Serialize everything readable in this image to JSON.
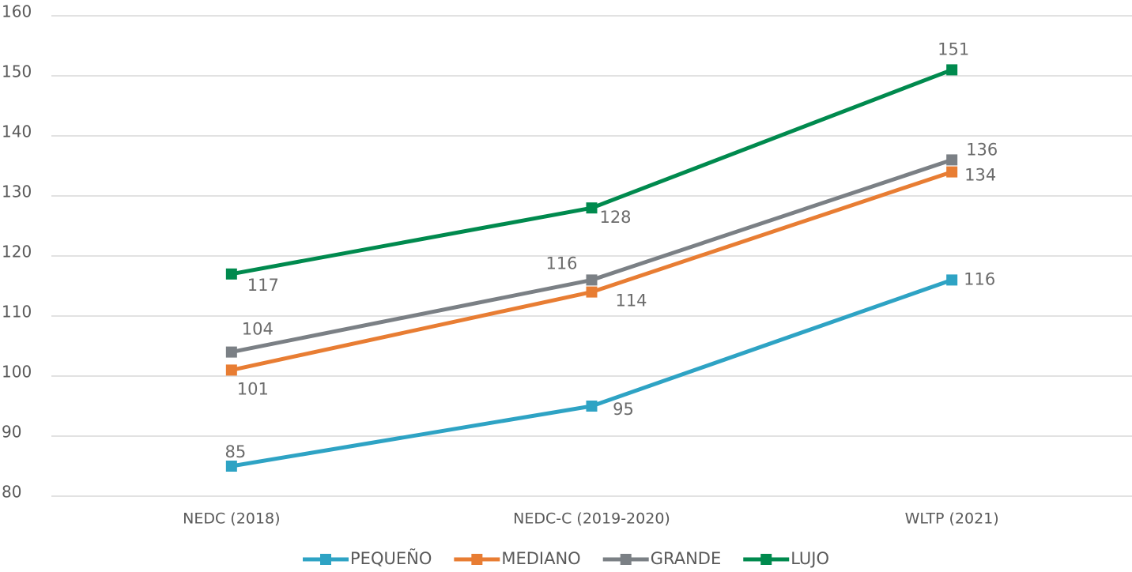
{
  "chart_data": {
    "type": "line",
    "categories": [
      "NEDC (2018)",
      "NEDC-C (2019-2020)",
      "WLTP (2021)"
    ],
    "series": [
      {
        "name": "PEQUEÑO",
        "color": "#2ea3c4",
        "values": [
          85,
          95,
          116
        ]
      },
      {
        "name": "MEDIANO",
        "color": "#e87d33",
        "values": [
          101,
          114,
          134
        ]
      },
      {
        "name": "GRANDE",
        "color": "#7b8085",
        "values": [
          104,
          116,
          136
        ]
      },
      {
        "name": "LUJO",
        "color": "#008a4e",
        "values": [
          117,
          128,
          151
        ]
      }
    ],
    "ylim": [
      80,
      160
    ],
    "yticks": [
      80,
      90,
      100,
      110,
      120,
      130,
      140,
      150,
      160
    ],
    "grid": true,
    "legend": "bottom"
  }
}
